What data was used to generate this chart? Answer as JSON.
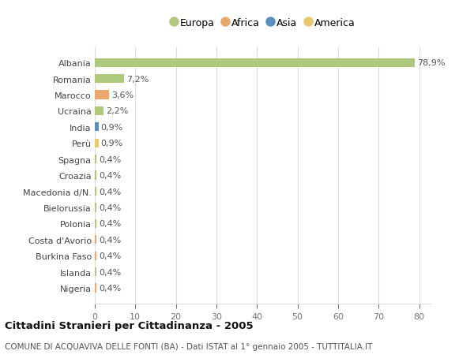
{
  "countries": [
    "Albania",
    "Romania",
    "Marocco",
    "Ucraina",
    "India",
    "Perù",
    "Spagna",
    "Croazia",
    "Macedonia d/N.",
    "Bielorussia",
    "Polonia",
    "Costa d'Avorio",
    "Burkina Faso",
    "Islanda",
    "Nigeria"
  ],
  "values": [
    78.9,
    7.2,
    3.6,
    2.2,
    0.9,
    0.9,
    0.4,
    0.4,
    0.4,
    0.4,
    0.4,
    0.4,
    0.4,
    0.4,
    0.4
  ],
  "labels": [
    "78,9%",
    "7,2%",
    "3,6%",
    "2,2%",
    "0,9%",
    "0,9%",
    "0,4%",
    "0,4%",
    "0,4%",
    "0,4%",
    "0,4%",
    "0,4%",
    "0,4%",
    "0,4%",
    "0,4%"
  ],
  "continents": [
    "Europa",
    "Europa",
    "Africa",
    "Europa",
    "Asia",
    "America",
    "Europa",
    "Europa",
    "Europa",
    "Europa",
    "Europa",
    "Africa",
    "Africa",
    "Europa",
    "Africa"
  ],
  "continent_colors": {
    "Europa": "#aec97e",
    "Africa": "#e9a96e",
    "Asia": "#5b8fc0",
    "America": "#e8c96e"
  },
  "legend_order": [
    "Europa",
    "Africa",
    "Asia",
    "America"
  ],
  "title": "Cittadini Stranieri per Cittadinanza - 2005",
  "subtitle": "COMUNE DI ACQUAVIVA DELLE FONTI (BA) - Dati ISTAT al 1° gennaio 2005 - TUTTITALIA.IT",
  "xlim": [
    0,
    83
  ],
  "xticks": [
    0,
    10,
    20,
    30,
    40,
    50,
    60,
    70,
    80
  ],
  "bg_color": "#ffffff",
  "grid_color": "#dddddd",
  "bar_height": 0.55,
  "label_fontsize": 8.0,
  "ytick_fontsize": 8.0,
  "xtick_fontsize": 8.0,
  "title_fontsize": 9.5,
  "subtitle_fontsize": 7.5
}
